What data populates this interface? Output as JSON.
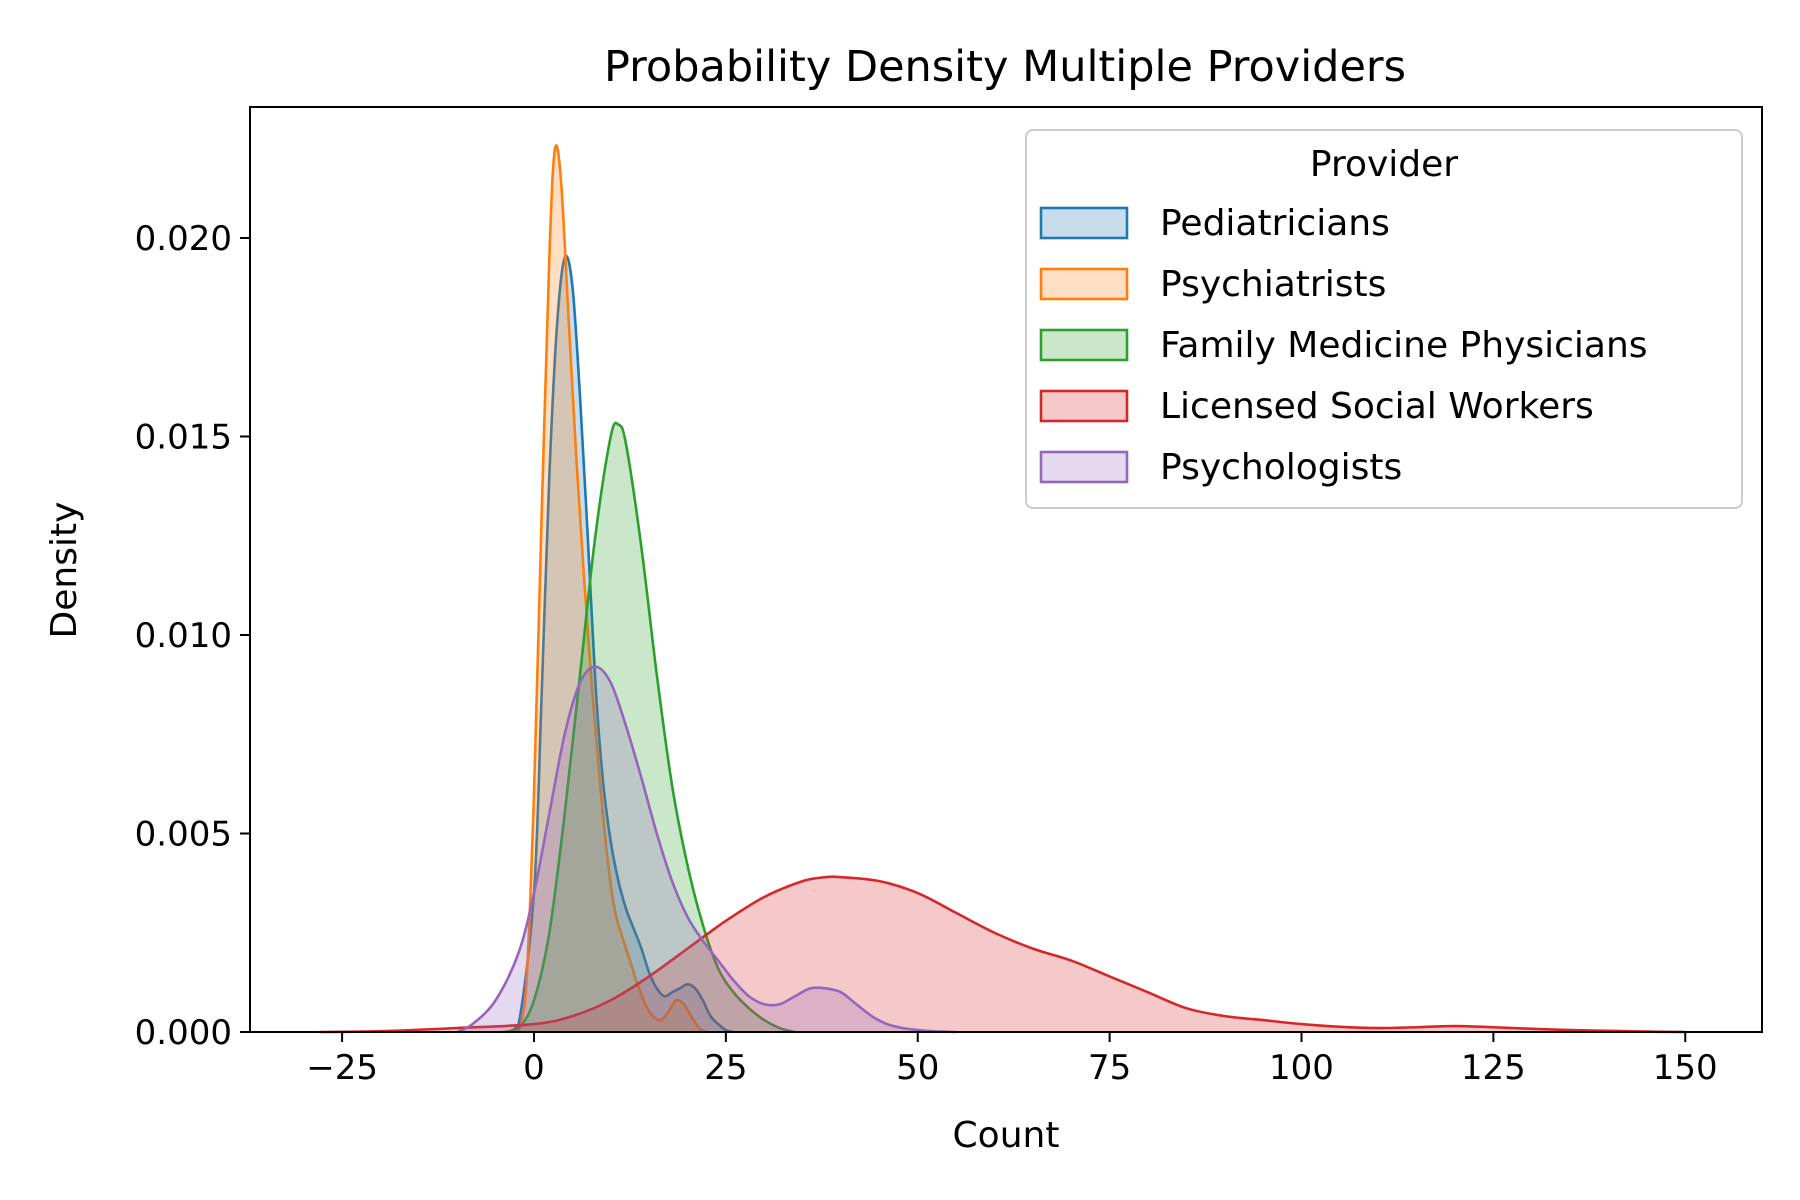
{
  "chart_data": {
    "type": "area",
    "title": "Probability Density Multiple Providers",
    "xlabel": "Count",
    "ylabel": "Density",
    "xlim": [
      -37,
      160
    ],
    "ylim": [
      0,
      0.0233
    ],
    "xticks": [
      -25,
      0,
      25,
      50,
      75,
      100,
      125,
      150
    ],
    "xtick_labels": [
      "−25",
      "0",
      "25",
      "50",
      "75",
      "100",
      "125",
      "150"
    ],
    "yticks": [
      0,
      0.005,
      0.01,
      0.015,
      0.02
    ],
    "ytick_labels": [
      "0.000",
      "0.005",
      "0.010",
      "0.015",
      "0.020"
    ],
    "grid": false,
    "legend": {
      "title": "Provider",
      "placement": "top-right"
    },
    "series": [
      {
        "name": "Pediatricians",
        "color": "#1f77b4",
        "x": [
          -3.5,
          -2,
          0,
          1,
          2,
          3,
          4,
          5,
          6,
          7,
          8,
          9,
          10,
          11,
          12,
          13,
          14,
          15,
          16,
          17,
          18,
          19,
          20,
          21,
          22,
          23,
          24,
          25,
          26
        ],
        "y": [
          0,
          0.0002,
          0.0035,
          0.0085,
          0.014,
          0.0178,
          0.0195,
          0.0188,
          0.016,
          0.0125,
          0.0088,
          0.0063,
          0.0048,
          0.0038,
          0.0031,
          0.0026,
          0.0021,
          0.0015,
          0.0011,
          0.0009,
          0.001,
          0.0011,
          0.0012,
          0.0011,
          0.0008,
          0.0004,
          0.0002,
          5e-05,
          0
        ]
      },
      {
        "name": "Psychiatrists",
        "color": "#ff7f0e",
        "x": [
          -2,
          -1,
          0,
          1,
          2,
          2.7,
          3.5,
          4.5,
          5.5,
          6.5,
          7.5,
          8.5,
          9.5,
          10.5,
          11.5,
          12.5,
          13.5,
          14.5,
          15.5,
          16.5,
          17.5,
          18.5,
          19.5,
          20.5,
          21.5,
          22.5
        ],
        "y": [
          0,
          0.0012,
          0.006,
          0.013,
          0.0195,
          0.0222,
          0.0215,
          0.018,
          0.0145,
          0.0115,
          0.0088,
          0.0065,
          0.0045,
          0.0031,
          0.0024,
          0.0018,
          0.0012,
          0.0007,
          0.0004,
          0.0003,
          0.0005,
          0.0008,
          0.0007,
          0.0004,
          0.0001,
          0
        ]
      },
      {
        "name": "Family Medicine Physicians",
        "color": "#2ca02c",
        "x": [
          -4,
          -2,
          0,
          2,
          4,
          6,
          8,
          10,
          11,
          12,
          14,
          16,
          18,
          20,
          22,
          24,
          26,
          28,
          30,
          32,
          34
        ],
        "y": [
          0,
          0.0001,
          0.0008,
          0.0025,
          0.0055,
          0.009,
          0.0125,
          0.015,
          0.0153,
          0.0148,
          0.0122,
          0.009,
          0.0062,
          0.0042,
          0.0027,
          0.0016,
          0.001,
          0.0006,
          0.0003,
          0.0001,
          0
        ]
      },
      {
        "name": "Licensed Social Workers",
        "color": "#d62728",
        "x": [
          -28,
          -20,
          -10,
          0,
          5,
          10,
          15,
          20,
          25,
          30,
          35,
          38,
          40,
          45,
          50,
          55,
          60,
          65,
          70,
          75,
          80,
          85,
          90,
          95,
          100,
          105,
          110,
          115,
          120,
          125,
          130,
          135,
          140,
          145,
          150
        ],
        "y": [
          0,
          2e-05,
          0.0001,
          0.0002,
          0.0004,
          0.0008,
          0.0014,
          0.0021,
          0.0028,
          0.0034,
          0.0038,
          0.0039,
          0.0039,
          0.0038,
          0.0035,
          0.003,
          0.0025,
          0.0021,
          0.0018,
          0.0014,
          0.001,
          0.0006,
          0.0004,
          0.0003,
          0.0002,
          0.00013,
          0.0001,
          0.00012,
          0.00015,
          0.00012,
          8e-05,
          5e-05,
          3e-05,
          1e-05,
          0
        ]
      },
      {
        "name": "Psychologists",
        "color": "#9467bd",
        "x": [
          -10,
          -8,
          -5,
          -2,
          0,
          2,
          4,
          6,
          8,
          10,
          12,
          14,
          16,
          18,
          20,
          22,
          24,
          26,
          28,
          30,
          32,
          34,
          36,
          38,
          40,
          42,
          44,
          46,
          48,
          50,
          52,
          55
        ],
        "y": [
          0,
          0.0002,
          0.0008,
          0.002,
          0.0035,
          0.0055,
          0.0075,
          0.0088,
          0.0092,
          0.0088,
          0.0077,
          0.0064,
          0.005,
          0.0038,
          0.0029,
          0.0023,
          0.0018,
          0.0013,
          0.0009,
          0.0007,
          0.0007,
          0.0009,
          0.0011,
          0.0011,
          0.001,
          0.0007,
          0.0004,
          0.0002,
          0.0001,
          5e-05,
          2e-05,
          0
        ]
      }
    ]
  }
}
